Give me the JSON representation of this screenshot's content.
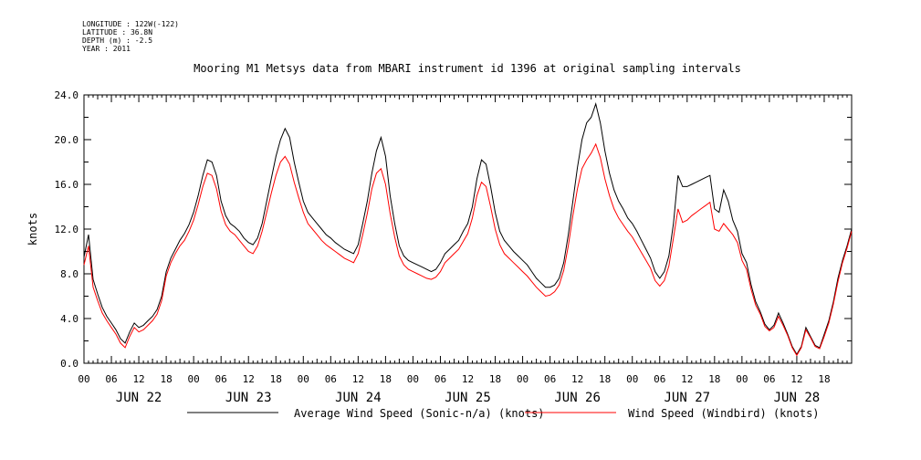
{
  "header": {
    "longitude": "LONGITUDE : 122W(-122)",
    "latitude": "LATITUDE : 36.8N",
    "depth": "DEPTH (m) : -2.5",
    "year": "YEAR : 2011"
  },
  "chart_data": {
    "type": "line",
    "title": "Mooring M1 Metsys data from MBARI instrument id 1396 at original sampling intervals",
    "ylabel": "knots",
    "xlabel": "",
    "ylim": [
      0,
      24
    ],
    "yticks": [
      "0.0",
      "4.0",
      "8.0",
      "12.0",
      "16.0",
      "20.0",
      "24.0"
    ],
    "xlim_hours": [
      0,
      168
    ],
    "hour_tick_labels": [
      "00",
      "06",
      "12",
      "18",
      "00",
      "06",
      "12",
      "18",
      "00",
      "06",
      "12",
      "18",
      "00",
      "06",
      "12",
      "18",
      "00",
      "06",
      "12",
      "18",
      "00",
      "06",
      "12",
      "18",
      "00",
      "06",
      "12",
      "18"
    ],
    "day_labels": [
      "JUN 22",
      "JUN 23",
      "JUN 24",
      "JUN 25",
      "JUN 26",
      "JUN 27",
      "JUN 28"
    ],
    "grid": false,
    "legend_position": "bottom",
    "series": [
      {
        "name": "Average Wind Speed (Sonic-n/a) (knots)",
        "color": "#000000",
        "x": [
          0,
          1,
          2,
          3,
          4,
          5,
          6,
          7,
          8,
          9,
          10,
          11,
          12,
          13,
          14,
          15,
          16,
          17,
          18,
          19,
          20,
          21,
          22,
          23,
          24,
          25,
          26,
          27,
          28,
          29,
          30,
          31,
          32,
          33,
          34,
          35,
          36,
          37,
          38,
          39,
          40,
          41,
          42,
          43,
          44,
          45,
          46,
          47,
          48,
          49,
          50,
          51,
          52,
          53,
          54,
          55,
          56,
          57,
          58,
          59,
          60,
          61,
          62,
          63,
          64,
          65,
          66,
          67,
          68,
          69,
          70,
          71,
          72,
          73,
          74,
          75,
          76,
          77,
          78,
          79,
          80,
          81,
          82,
          83,
          84,
          85,
          86,
          87,
          88,
          89,
          90,
          91,
          92,
          93,
          94,
          95,
          96,
          97,
          98,
          99,
          100,
          101,
          102,
          103,
          104,
          105,
          106,
          107,
          108,
          109,
          110,
          111,
          112,
          113,
          114,
          115,
          116,
          117,
          118,
          119,
          120,
          121,
          122,
          123,
          124,
          125,
          126,
          127,
          128,
          129,
          130,
          131,
          132,
          133,
          134,
          135,
          136,
          137,
          138,
          139,
          140,
          141,
          142,
          143,
          144,
          145,
          146,
          147,
          148,
          149,
          150,
          151,
          152,
          153,
          154,
          155,
          156,
          157,
          158,
          159,
          160,
          161,
          162,
          163,
          164,
          165,
          166,
          167,
          168
        ],
        "y": [
          9.5,
          11.5,
          7.5,
          6.2,
          5.0,
          4.2,
          3.6,
          3.0,
          2.2,
          1.8,
          2.8,
          3.6,
          3.2,
          3.4,
          3.8,
          4.2,
          4.8,
          6.0,
          8.2,
          9.4,
          10.2,
          11.0,
          11.6,
          12.4,
          13.5,
          15.0,
          16.8,
          18.2,
          18.0,
          16.8,
          14.5,
          13.2,
          12.5,
          12.2,
          11.8,
          11.2,
          10.8,
          10.6,
          11.2,
          12.5,
          14.5,
          16.5,
          18.5,
          20.0,
          21.0,
          20.2,
          18.0,
          16.2,
          14.5,
          13.5,
          13.0,
          12.5,
          12.0,
          11.5,
          11.2,
          10.8,
          10.5,
          10.2,
          10.0,
          9.8,
          10.6,
          12.5,
          14.5,
          17.0,
          19.0,
          20.2,
          18.5,
          15.0,
          12.5,
          10.5,
          9.6,
          9.2,
          9.0,
          8.8,
          8.6,
          8.4,
          8.2,
          8.4,
          9.0,
          9.8,
          10.2,
          10.6,
          11.0,
          11.8,
          12.5,
          14.0,
          16.5,
          18.2,
          17.8,
          15.8,
          13.5,
          11.8,
          11.0,
          10.5,
          10.0,
          9.6,
          9.2,
          8.8,
          8.2,
          7.6,
          7.2,
          6.8,
          6.8,
          7.0,
          7.6,
          9.0,
          11.5,
          14.5,
          17.5,
          20.0,
          21.5,
          22.0,
          23.2,
          21.5,
          19.0,
          17.0,
          15.5,
          14.5,
          13.8,
          13.0,
          12.5,
          11.8,
          11.0,
          10.2,
          9.4,
          8.2,
          7.6,
          8.2,
          9.6,
          12.5,
          16.8,
          15.8,
          15.8,
          16.0,
          16.2,
          16.4,
          16.6,
          16.8,
          13.8,
          13.5,
          15.5,
          14.5,
          12.8,
          11.8,
          9.8,
          9.0,
          7.0,
          5.5,
          4.6,
          3.5,
          3.0,
          3.4,
          4.5,
          3.6,
          2.6,
          1.5,
          0.8,
          1.5,
          3.2,
          2.4,
          1.6,
          1.4,
          2.6,
          3.8,
          5.5,
          7.6,
          9.2,
          10.5,
          12.0
        ]
      },
      {
        "name": "Wind Speed (Windbird) (knots)",
        "color": "#ff0000",
        "x": [
          0,
          1,
          2,
          3,
          4,
          5,
          6,
          7,
          8,
          9,
          10,
          11,
          12,
          13,
          14,
          15,
          16,
          17,
          18,
          19,
          20,
          21,
          22,
          23,
          24,
          25,
          26,
          27,
          28,
          29,
          30,
          31,
          32,
          33,
          34,
          35,
          36,
          37,
          38,
          39,
          40,
          41,
          42,
          43,
          44,
          45,
          46,
          47,
          48,
          49,
          50,
          51,
          52,
          53,
          54,
          55,
          56,
          57,
          58,
          59,
          60,
          61,
          62,
          63,
          64,
          65,
          66,
          67,
          68,
          69,
          70,
          71,
          72,
          73,
          74,
          75,
          76,
          77,
          78,
          79,
          80,
          81,
          82,
          83,
          84,
          85,
          86,
          87,
          88,
          89,
          90,
          91,
          92,
          93,
          94,
          95,
          96,
          97,
          98,
          99,
          100,
          101,
          102,
          103,
          104,
          105,
          106,
          107,
          108,
          109,
          110,
          111,
          112,
          113,
          114,
          115,
          116,
          117,
          118,
          119,
          120,
          121,
          122,
          123,
          124,
          125,
          126,
          127,
          128,
          129,
          130,
          131,
          132,
          133,
          134,
          135,
          136,
          137,
          138,
          139,
          140,
          141,
          142,
          143,
          144,
          145,
          146,
          147,
          148,
          149,
          150,
          151,
          152,
          153,
          154,
          155,
          156,
          157,
          158,
          159,
          160,
          161,
          162,
          163,
          164,
          165,
          166,
          167,
          168
        ],
        "y": [
          8.8,
          10.5,
          6.8,
          5.6,
          4.5,
          3.8,
          3.2,
          2.6,
          1.8,
          1.4,
          2.4,
          3.2,
          2.8,
          3.0,
          3.4,
          3.8,
          4.4,
          5.6,
          7.8,
          9.0,
          9.8,
          10.5,
          11.0,
          11.8,
          12.8,
          14.2,
          15.8,
          17.0,
          16.8,
          15.6,
          13.6,
          12.4,
          11.8,
          11.5,
          11.0,
          10.5,
          10.0,
          9.8,
          10.5,
          11.8,
          13.5,
          15.2,
          16.8,
          18.0,
          18.5,
          17.8,
          16.2,
          14.8,
          13.5,
          12.5,
          12.0,
          11.5,
          11.0,
          10.6,
          10.3,
          10.0,
          9.7,
          9.4,
          9.2,
          9.0,
          9.8,
          11.5,
          13.4,
          15.6,
          17.0,
          17.4,
          16.0,
          13.4,
          11.3,
          9.6,
          8.8,
          8.4,
          8.2,
          8.0,
          7.8,
          7.6,
          7.5,
          7.7,
          8.2,
          9.0,
          9.4,
          9.8,
          10.2,
          10.9,
          11.6,
          13.0,
          15.0,
          16.2,
          15.8,
          14.0,
          12.0,
          10.6,
          9.8,
          9.4,
          9.0,
          8.6,
          8.2,
          7.8,
          7.3,
          6.8,
          6.4,
          6.0,
          6.1,
          6.4,
          7.0,
          8.3,
          10.5,
          13.2,
          15.6,
          17.4,
          18.2,
          18.8,
          19.6,
          18.4,
          16.5,
          15.0,
          13.8,
          13.0,
          12.4,
          11.8,
          11.3,
          10.6,
          9.9,
          9.2,
          8.5,
          7.4,
          6.9,
          7.4,
          8.7,
          11.2,
          13.8,
          12.6,
          12.8,
          13.2,
          13.5,
          13.8,
          14.1,
          14.4,
          12.0,
          11.8,
          12.5,
          12.0,
          11.5,
          10.8,
          9.2,
          8.4,
          6.6,
          5.2,
          4.4,
          3.3,
          2.9,
          3.2,
          4.2,
          3.4,
          2.5,
          1.4,
          0.7,
          1.4,
          3.0,
          2.3,
          1.5,
          1.3,
          2.4,
          3.6,
          5.3,
          7.3,
          9.0,
          10.3,
          11.8
        ]
      }
    ]
  }
}
